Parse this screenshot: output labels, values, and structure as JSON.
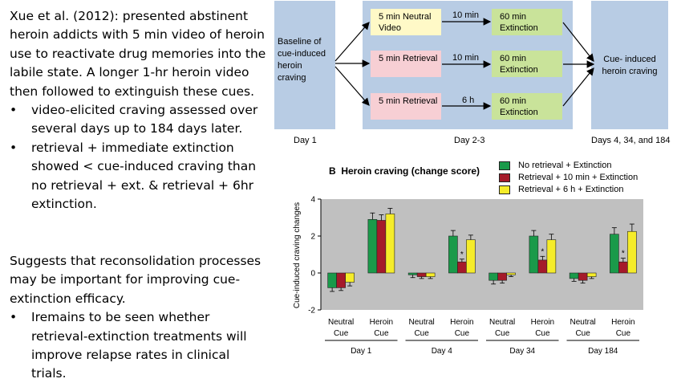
{
  "left": {
    "intro": "Xue et al. (2012): presented abstinent heroin addicts with 5 min video of heroin use to reactivate drug memories into the labile state. A longer 1-hr heroin video then followed to extinguish these cues.",
    "bullets1": [
      "video-elicited craving assessed over several days up to 184 days later.",
      "retrieval + immediate extinction showed < cue-induced craving than no retrieval + ext. & retrieval + 6hr extinction."
    ],
    "para2": "Suggests that reconsolidation processes may be important for improving cue-extinction efficacy.",
    "bullets2": [
      "Iremains to be seen whether retrieval-extinction treatments will improve relapse rates in clinical trials."
    ]
  },
  "flow": {
    "baseline": "Baseline of cue-induced heroin craving",
    "rows": [
      {
        "left": "5 min Neutral Video",
        "arrow": "10 min",
        "right": "60 min Extinction"
      },
      {
        "left": "5 min Retrieval",
        "arrow": "10 min",
        "right": "60 min Extinction"
      },
      {
        "left": "5 min Retrieval",
        "arrow": "6 h",
        "right": "60 min Extinction"
      }
    ],
    "outcome": "Cue- induced heroin craving",
    "days": [
      "Day 1",
      "Day 2-3",
      "Days 4, 34, and 184"
    ],
    "colors": {
      "panel": "#b8cce4",
      "yellow": "#fff9c7",
      "pink": "#f7cfd4",
      "green": "#c9e39a"
    }
  },
  "chart_data": {
    "type": "bar",
    "title": "B  Heroin craving (change score)",
    "ylabel": "Cue-induced craving changes",
    "ylim": [
      -2,
      4
    ],
    "yticks": [
      -2,
      0,
      2,
      4
    ],
    "groups": [
      {
        "day": "Day 1",
        "cues": [
          "Neutral\nCue",
          "Heroin\nCue"
        ]
      },
      {
        "day": "Day 4",
        "cues": [
          "Neutral\nCue",
          "Heroin\nCue"
        ]
      },
      {
        "day": "Day 34",
        "cues": [
          "Neutral\nCue",
          "Heroin\nCue"
        ]
      },
      {
        "day": "Day 184",
        "cues": [
          "Neutral\nCue",
          "Heroin\nCue"
        ]
      }
    ],
    "categories": [
      "Day 1 Neutral Cue",
      "Day 1 Heroin Cue",
      "Day 4 Neutral Cue",
      "Day 4 Heroin Cue",
      "Day 34 Neutral Cue",
      "Day 34 Heroin Cue",
      "Day 184 Neutral Cue",
      "Day 184 Heroin Cue"
    ],
    "series": [
      {
        "name": "No retrieval + Extinction",
        "color": "#1a9a4a",
        "values": [
          -0.8,
          2.9,
          -0.1,
          2.0,
          -0.4,
          2.0,
          -0.3,
          2.1
        ],
        "errors": [
          0.2,
          0.35,
          0.15,
          0.3,
          0.2,
          0.3,
          0.15,
          0.35
        ]
      },
      {
        "name": "Retrieval + 10 min + Extinction",
        "color": "#a51a2a",
        "values": [
          -0.8,
          2.85,
          -0.2,
          0.6,
          -0.4,
          0.7,
          -0.4,
          0.6
        ],
        "errors": [
          0.15,
          0.3,
          0.1,
          0.15,
          0.15,
          0.2,
          0.15,
          0.2
        ]
      },
      {
        "name": "Retrieval + 6 h + Extinction",
        "color": "#f5ec2a",
        "values": [
          -0.5,
          3.2,
          -0.2,
          1.8,
          -0.1,
          1.8,
          -0.2,
          2.25
        ],
        "errors": [
          0.2,
          0.3,
          0.1,
          0.25,
          0.1,
          0.3,
          0.1,
          0.4
        ]
      }
    ],
    "significance": [
      "",
      "",
      "",
      "*",
      "",
      "*",
      "",
      "*"
    ],
    "grid": false,
    "legend": "top-right",
    "background": "#c0c0c0"
  }
}
